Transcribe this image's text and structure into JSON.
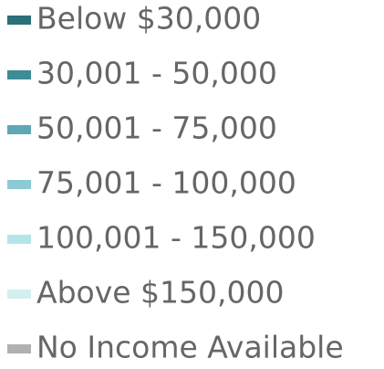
{
  "legend": {
    "items": [
      {
        "label": "Below $30,000",
        "color": "#2b6f79"
      },
      {
        "label": "30,001 - 50,000",
        "color": "#3d8c96"
      },
      {
        "label": "50,001 - 75,000",
        "color": "#5ea8b5"
      },
      {
        "label": "75,001 - 100,000",
        "color": "#8ccbd5"
      },
      {
        "label": "100,001 - 150,000",
        "color": "#b4e5ea"
      },
      {
        "label": "Above $150,000",
        "color": "#d3efef"
      },
      {
        "label": "No Income Available",
        "color": "#b0b0b0"
      }
    ]
  }
}
